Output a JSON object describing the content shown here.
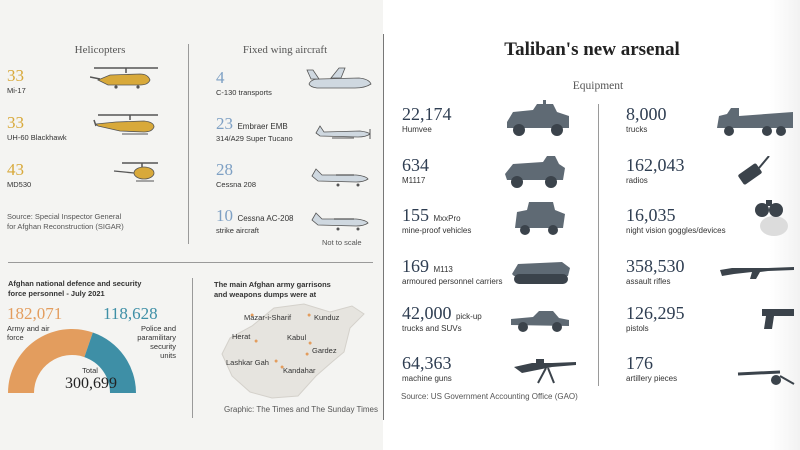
{
  "colors": {
    "gold": "#d8a93a",
    "blue": "#7ea0c4",
    "navy": "#2f3e52",
    "army": "#e39d5e",
    "police": "#3e8fa6",
    "vehicle_gray": "#5f6a74"
  },
  "title": "Taliban's new arsenal",
  "helicopters": {
    "heading": "Helicopters",
    "items": [
      {
        "value": "33",
        "label": "Mi-17",
        "icon": "mi17-helicopter-icon"
      },
      {
        "value": "33",
        "label": "UH-60 Blackhawk",
        "icon": "blackhawk-helicopter-icon"
      },
      {
        "value": "43",
        "label": "MD530",
        "icon": "md530-helicopter-icon"
      }
    ]
  },
  "fixed_wing": {
    "heading": "Fixed wing aircraft",
    "items": [
      {
        "value": "4",
        "label": "C-130 transports",
        "inline": "",
        "icon": "c130-plane-icon"
      },
      {
        "value": "23",
        "inline": "Embraer EMB",
        "label": "314/A29 Super Tucano",
        "icon": "tucano-plane-icon"
      },
      {
        "value": "28",
        "label": "Cessna 208",
        "inline": "",
        "icon": "cessna-plane-icon"
      },
      {
        "value": "10",
        "inline": "Cessna AC-208",
        "label": "strike aircraft",
        "icon": "ac208-plane-icon"
      }
    ]
  },
  "source_sigar": "Source: Special Inspector General\nfor Afghan Reconstruction (SIGAR)",
  "not_to_scale": "Not to scale",
  "personnel": {
    "heading": "Afghan national defence and security\nforce personnel - July 2021",
    "army_value": "182,071",
    "army_label": "Army and air\nforce",
    "police_value": "118,628",
    "police_label": "Police and\nparamilitary\nsecurity\nunits",
    "total_label": "Total",
    "total_value": "300,699"
  },
  "garrisons": {
    "heading": "The main Afghan army garrisons\nand weapons dumps were at",
    "cities": [
      "Mazar-i-Sharif",
      "Kunduz",
      "Herat",
      "Kabul",
      "Gardez",
      "Lashkar Gah",
      "Kandahar"
    ]
  },
  "graphic_credit": "Graphic: The Times and The Sunday Times",
  "equipment": {
    "heading": "Equipment",
    "left": [
      {
        "value": "22,174",
        "inline": "",
        "label": "Humvee",
        "icon": "humvee-icon"
      },
      {
        "value": "634",
        "inline": "",
        "label": "M1117",
        "icon": "m1117-armoured-car-icon"
      },
      {
        "value": "155",
        "inline": "MxxPro",
        "label": "mine-proof vehicles",
        "icon": "mrap-vehicle-icon"
      },
      {
        "value": "169",
        "inline": "M113",
        "label": "armoured personnel carriers",
        "icon": "apc-tracked-icon"
      },
      {
        "value": "42,000",
        "inline": "pick-up",
        "label": "trucks and SUVs",
        "icon": "pickup-truck-icon"
      },
      {
        "value": "64,363",
        "inline": "",
        "label": "machine guns",
        "icon": "machine-gun-icon"
      }
    ],
    "right": [
      {
        "value": "8,000",
        "label": "trucks",
        "icon": "army-truck-icon"
      },
      {
        "value": "162,043",
        "label": "radios",
        "icon": "radio-icon"
      },
      {
        "value": "16,035",
        "label": "night vision goggles/devices",
        "icon": "night-vision-goggles-icon"
      },
      {
        "value": "358,530",
        "label": "assault rifles",
        "icon": "assault-rifle-icon"
      },
      {
        "value": "126,295",
        "label": "pistols",
        "icon": "pistol-icon"
      },
      {
        "value": "176",
        "label": "artillery pieces",
        "icon": "artillery-icon"
      }
    ]
  },
  "source_gao": "Source: US Government Accounting Office (GAO)",
  "chart_data": [
    {
      "type": "table",
      "title": "Helicopters",
      "categories": [
        "Mi-17",
        "UH-60 Blackhawk",
        "MD530"
      ],
      "values": [
        33,
        33,
        43
      ]
    },
    {
      "type": "table",
      "title": "Fixed wing aircraft",
      "categories": [
        "C-130 transports",
        "Embraer EMB 314/A29 Super Tucano",
        "Cessna 208",
        "Cessna AC-208 strike aircraft"
      ],
      "values": [
        4,
        23,
        28,
        10
      ]
    },
    {
      "type": "pie",
      "title": "Afghan national defence and security force personnel - July 2021",
      "categories": [
        "Army and air force",
        "Police and paramilitary security units"
      ],
      "values": [
        182071,
        118628
      ],
      "total": 300699
    },
    {
      "type": "table",
      "title": "Equipment",
      "categories": [
        "Humvee",
        "M1117",
        "MxxPro mine-proof vehicles",
        "M113 armoured personnel carriers",
        "pick-up trucks and SUVs",
        "machine guns",
        "trucks",
        "radios",
        "night vision goggles/devices",
        "assault rifles",
        "pistols",
        "artillery pieces"
      ],
      "values": [
        22174,
        634,
        155,
        169,
        42000,
        64363,
        8000,
        162043,
        16035,
        358530,
        126295,
        176
      ]
    }
  ]
}
